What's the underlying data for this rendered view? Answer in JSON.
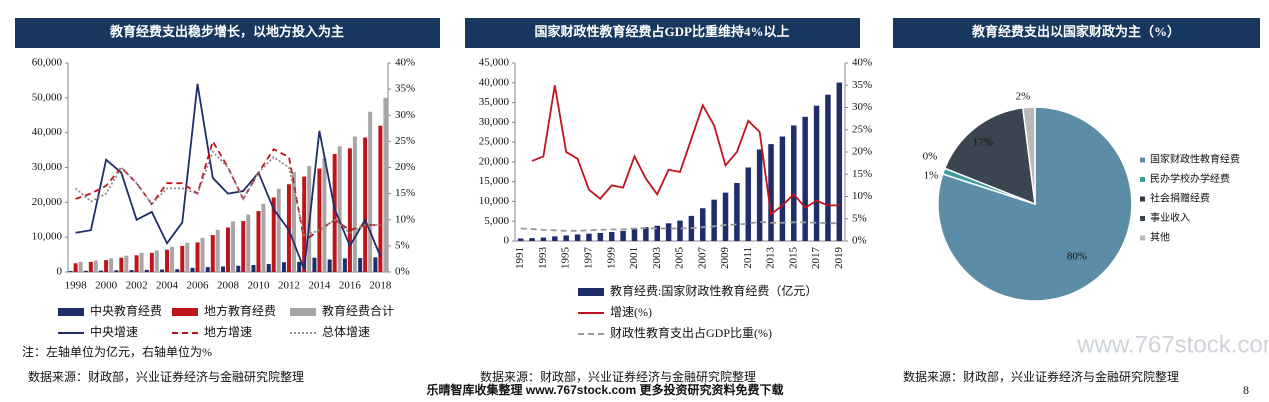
{
  "chart_data": [
    {
      "type": "bar",
      "title": "教育经费支出稳步增长，以地方投入为主",
      "categories": [
        "1998",
        null,
        "2000",
        null,
        "2002",
        null,
        "2004",
        null,
        "2006",
        null,
        "2008",
        null,
        "2010",
        null,
        "2012",
        null,
        "2014",
        null,
        "2016",
        null,
        "2018"
      ],
      "series": [
        {
          "name": "中央教育经费",
          "type": "bar",
          "color": "#1f2d6b",
          "values": [
            300,
            350,
            400,
            500,
            550,
            600,
            700,
            800,
            1200,
            1400,
            1600,
            1800,
            2000,
            2300,
            2800,
            2900,
            4100,
            3600,
            3900,
            4000,
            4200
          ]
        },
        {
          "name": "地方教育经费",
          "type": "bar",
          "color": "#c0141b",
          "values": [
            2500,
            2900,
            3400,
            4100,
            4800,
            5500,
            6400,
            7500,
            8500,
            10600,
            12800,
            14600,
            17500,
            21400,
            25200,
            27400,
            29700,
            33900,
            35500,
            38600,
            42000
          ]
        },
        {
          "name": "教育经费合计",
          "type": "bar",
          "color": "#a6a6a6",
          "values": [
            2900,
            3300,
            3900,
            4700,
            5500,
            6200,
            7200,
            8400,
            9800,
            12100,
            14500,
            16500,
            19600,
            23900,
            28700,
            30400,
            32800,
            36100,
            38900,
            46000,
            50000
          ]
        },
        {
          "name": "中央增速",
          "type": "line",
          "axis": "y2",
          "dash": "solid",
          "color": "#1f2d6b",
          "values": [
            7.5,
            8,
            21.5,
            19,
            10,
            11.5,
            5.5,
            9.5,
            36,
            18,
            15,
            15.5,
            19,
            12,
            8,
            0.5,
            27,
            12,
            5,
            10,
            3
          ]
        },
        {
          "name": "地方增速",
          "type": "line",
          "axis": "y2",
          "dash": "dashed",
          "color": "#c0141b",
          "values": [
            14,
            15,
            16.5,
            20,
            17,
            13,
            17,
            17,
            15,
            25,
            20,
            14,
            19,
            23.5,
            22,
            6,
            8,
            10,
            8,
            9,
            9
          ]
        },
        {
          "name": "总体增速",
          "type": "line",
          "axis": "y2",
          "dash": "dotted",
          "color": "#8c8c8c",
          "values": [
            16,
            13.5,
            15,
            20,
            17,
            13,
            16,
            16,
            15,
            23,
            20,
            14,
            19,
            22,
            20,
            7,
            8,
            10,
            7.5,
            9,
            9
          ]
        }
      ],
      "ylim": [
        0,
        60000
      ],
      "yticks": [
        0,
        {
          "value": 10000,
          "label": "10,000"
        },
        {
          "value": 20000,
          "label": "20,000"
        },
        {
          "value": 30000,
          "label": "30,000"
        },
        {
          "value": 40000,
          "label": "40,000"
        },
        {
          "value": 50000,
          "label": "50,000"
        },
        {
          "value": 60000,
          "label": "60,000"
        }
      ],
      "y2lim": [
        0,
        40
      ],
      "y2ticks": [
        {
          "value": 0,
          "label": "0%"
        },
        {
          "value": 5,
          "label": "5%"
        },
        {
          "value": 10,
          "label": "10%"
        },
        {
          "value": 15,
          "label": "15%"
        },
        {
          "value": 20,
          "label": "20%"
        },
        {
          "value": 25,
          "label": "25%"
        },
        {
          "value": 30,
          "label": "30%"
        },
        {
          "value": 35,
          "label": "35%"
        },
        {
          "value": 40,
          "label": "40%"
        }
      ],
      "note": "注：左轴单位为亿元，右轴单位为%",
      "source": "数据来源：财政部，兴业证券经济与金融研究院整理"
    },
    {
      "type": "bar",
      "title": "国家财政性教育经费占GDP比重维持4%以上",
      "categories": [
        "1991",
        null,
        "1993",
        null,
        "1995",
        null,
        "1997",
        null,
        "1999",
        null,
        "2001",
        null,
        "2003",
        null,
        "2005",
        null,
        "2007",
        null,
        "2009",
        null,
        "2011",
        null,
        "2013",
        null,
        "2015",
        null,
        "2017",
        null,
        "2019"
      ],
      "series": [
        {
          "name": "教育经费:国家财政性教育经费（亿元）",
          "type": "bar",
          "color": "#1f2d6b",
          "values": [
            620,
            730,
            870,
            1170,
            1410,
            1670,
            1860,
            2030,
            2290,
            2560,
            3060,
            3490,
            3850,
            4470,
            5160,
            6350,
            8280,
            10450,
            12230,
            14670,
            18590,
            23150,
            24490,
            26420,
            29220,
            31400,
            34200,
            36990,
            40050
          ]
        },
        {
          "name": "增速(%)",
          "type": "line",
          "axis": "y2",
          "dash": "solid",
          "color": "#c0141b",
          "values": [
            null,
            18,
            19,
            35,
            20,
            18.5,
            11.5,
            9.5,
            12.5,
            12,
            19,
            14,
            10.5,
            16,
            15.5,
            23,
            30.5,
            26,
            17,
            20,
            27,
            24.5,
            6,
            8,
            10.5,
            7.5,
            9,
            8,
            8
          ]
        },
        {
          "name": "财政性教育支出占GDP比重(%)",
          "type": "line",
          "axis": "y2",
          "dash": "dashed",
          "color": "#9a9a9a",
          "values": [
            2.8,
            2.7,
            2.5,
            2.4,
            2.3,
            2.3,
            2.4,
            2.5,
            2.6,
            2.6,
            2.8,
            2.9,
            2.8,
            2.8,
            2.8,
            2.9,
            3.1,
            3.3,
            3.6,
            3.7,
            3.9,
            4.3,
            4.1,
            4.1,
            4.2,
            4.2,
            4.1,
            4.0,
            4.0
          ]
        }
      ],
      "ylim": [
        0,
        45000
      ],
      "yticks": [
        0,
        {
          "value": 5000,
          "label": "5,000"
        },
        {
          "value": 10000,
          "label": "10,000"
        },
        {
          "value": 15000,
          "label": "15,000"
        },
        {
          "value": 20000,
          "label": "20,000"
        },
        {
          "value": 25000,
          "label": "25,000"
        },
        {
          "value": 30000,
          "label": "30,000"
        },
        {
          "value": 35000,
          "label": "35,000"
        },
        {
          "value": 40000,
          "label": "40,000"
        },
        {
          "value": 45000,
          "label": "45,000"
        }
      ],
      "y2lim": [
        0,
        40
      ],
      "y2ticks": [
        {
          "value": 0,
          "label": "0%"
        },
        {
          "value": 5,
          "label": "5%"
        },
        {
          "value": 10,
          "label": "10%"
        },
        {
          "value": 15,
          "label": "15%"
        },
        {
          "value": 20,
          "label": "20%"
        },
        {
          "value": 25,
          "label": "25%"
        },
        {
          "value": 30,
          "label": "30%"
        },
        {
          "value": 35,
          "label": "35%"
        },
        {
          "value": 40,
          "label": "40%"
        }
      ],
      "source": "数据来源：财政部，兴业证券经济与金融研究院整理"
    },
    {
      "type": "pie",
      "title": "教育经费支出以国家财政为主（%）",
      "categories": [
        "国家财政性教育经费",
        "民办学校办学经费",
        "社会捐赠经费",
        "事业收入",
        "其他"
      ],
      "values": [
        80,
        1,
        0,
        17,
        2
      ],
      "value_labels": [
        "80%",
        "1%",
        "0%",
        "17%",
        "2%"
      ],
      "colors": [
        "#5b8ea6",
        "#3f9c9c",
        "#2f3b46",
        "#3a4550",
        "#b9b9b9"
      ],
      "source": "数据来源：财政部，兴业证券经济与金融研究院整理"
    }
  ],
  "footer": {
    "text": "乐晴智库收集整理 www.767stock.com 更多投资研究资料免费下载",
    "watermark": "www.767stock.com",
    "page": "8"
  }
}
